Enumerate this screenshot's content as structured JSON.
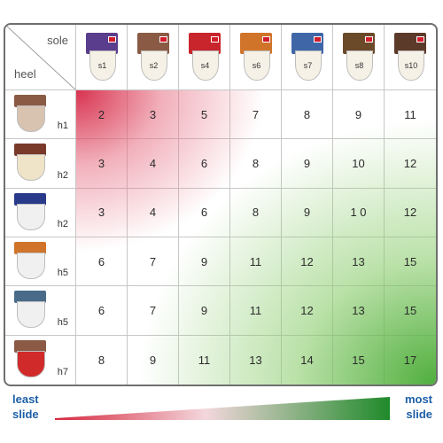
{
  "header": {
    "sole_label": "sole",
    "heel_label": "heel"
  },
  "soles": [
    {
      "label": "s1",
      "color": "#5a3d8c"
    },
    {
      "label": "s2",
      "color": "#8a5a44"
    },
    {
      "label": "s4",
      "color": "#c9252c"
    },
    {
      "label": "s6",
      "color": "#d0742a"
    },
    {
      "label": "s7",
      "color": "#3f67a8"
    },
    {
      "label": "s8",
      "color": "#6b4a2a"
    },
    {
      "label": "s10",
      "color": "#5c3a2a"
    }
  ],
  "heels": [
    {
      "label": "h1",
      "color": "#8a5a44",
      "pad": "#d8c3b0"
    },
    {
      "label": "h2",
      "color": "#7a3a2a",
      "pad": "#efe3c8"
    },
    {
      "label": "h2",
      "color": "#2a3a8a",
      "pad": "#f0f0f0"
    },
    {
      "label": "h5",
      "color": "#d0742a",
      "pad": "#f0f0f0"
    },
    {
      "label": "h5",
      "color": "#4a6a8a",
      "pad": "#f0f0f0"
    },
    {
      "label": "h7",
      "color": "#8a5a44",
      "pad": "#d02a2a"
    }
  ],
  "table": {
    "rows": [
      [
        "2",
        "3",
        "5",
        "7",
        "8",
        "9",
        "11"
      ],
      [
        "3",
        "4",
        "6",
        "8",
        "9",
        "10",
        "12"
      ],
      [
        "3",
        "4",
        "6",
        "8",
        "9",
        "1 0",
        "12"
      ],
      [
        "6",
        "7",
        "9",
        "11",
        "12",
        "13",
        "15"
      ],
      [
        "6",
        "7",
        "9",
        "11",
        "12",
        "13",
        "15"
      ],
      [
        "8",
        "9",
        "11",
        "13",
        "14",
        "15",
        "17"
      ]
    ]
  },
  "legend": {
    "least_line1": "least",
    "least_line2": "slide",
    "most_line1": "most",
    "most_line2": "slide",
    "start_color": "#d6283f",
    "end_color": "#1f8a2a"
  }
}
